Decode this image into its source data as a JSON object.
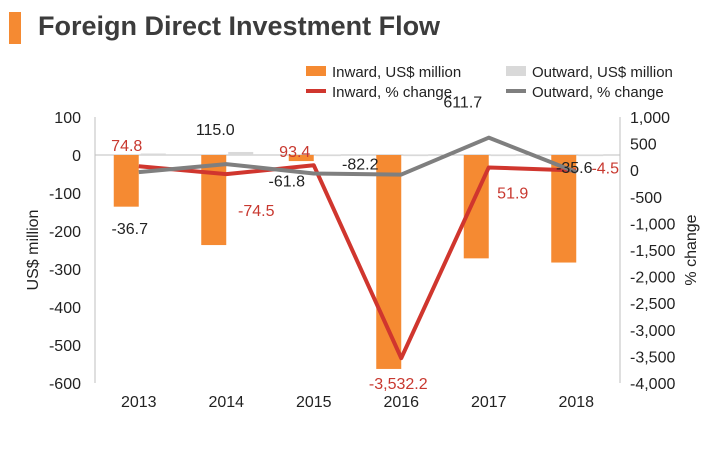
{
  "title": "Foreign Direct Investment Flow",
  "colors": {
    "accent": "#f58a32",
    "inward_bar": "#f58a32",
    "outward_bar": "#d9d9d9",
    "inward_line": "#d0362e",
    "outward_line": "#7f7f7f",
    "inward_label": "#c8382f",
    "text": "#222222",
    "title": "#3c3c3c"
  },
  "chart_data": {
    "type": "bar",
    "categories": [
      "2013",
      "2014",
      "2015",
      "2016",
      "2017",
      "2018"
    ],
    "series": [
      {
        "name": "Inward, US$ million",
        "kind": "bar",
        "axis": "left",
        "values": [
          -136,
          -237,
          -16,
          -563,
          -272,
          -283
        ]
      },
      {
        "name": "Outward, US$ million",
        "kind": "bar",
        "axis": "left",
        "values": [
          4,
          8,
          1,
          1,
          1,
          1
        ]
      },
      {
        "name": "Inward, % change",
        "kind": "line",
        "axis": "right",
        "values": [
          74.8,
          -74.5,
          93.4,
          -3532.2,
          51.9,
          -4.5
        ],
        "labels": [
          "74.8",
          "-74.5",
          "93.4",
          "-3,532.2",
          "51.9",
          "-4.5"
        ]
      },
      {
        "name": "Outward, % change",
        "kind": "line",
        "axis": "right",
        "values": [
          -36.7,
          115.0,
          -61.8,
          -82.2,
          611.7,
          -35.6
        ],
        "labels": [
          "-36.7",
          "115.0",
          "-61.8",
          "-82.2",
          "611.7",
          "-35.6"
        ]
      }
    ],
    "ylabel": "US$ million",
    "y2label": "% change",
    "ylim": [
      -600,
      100
    ],
    "y2lim": [
      -4000,
      1000
    ],
    "yticks": [
      "100",
      "0",
      "-100",
      "-200",
      "-300",
      "-400",
      "-500",
      "-600"
    ],
    "y2ticks": [
      "1,000",
      "500",
      "0",
      "-500",
      "-1,000",
      "-1,500",
      "-2,000",
      "-2,500",
      "-3,000",
      "-3,500",
      "-4,000"
    ],
    "legend_position": "top-right",
    "grid": false
  }
}
